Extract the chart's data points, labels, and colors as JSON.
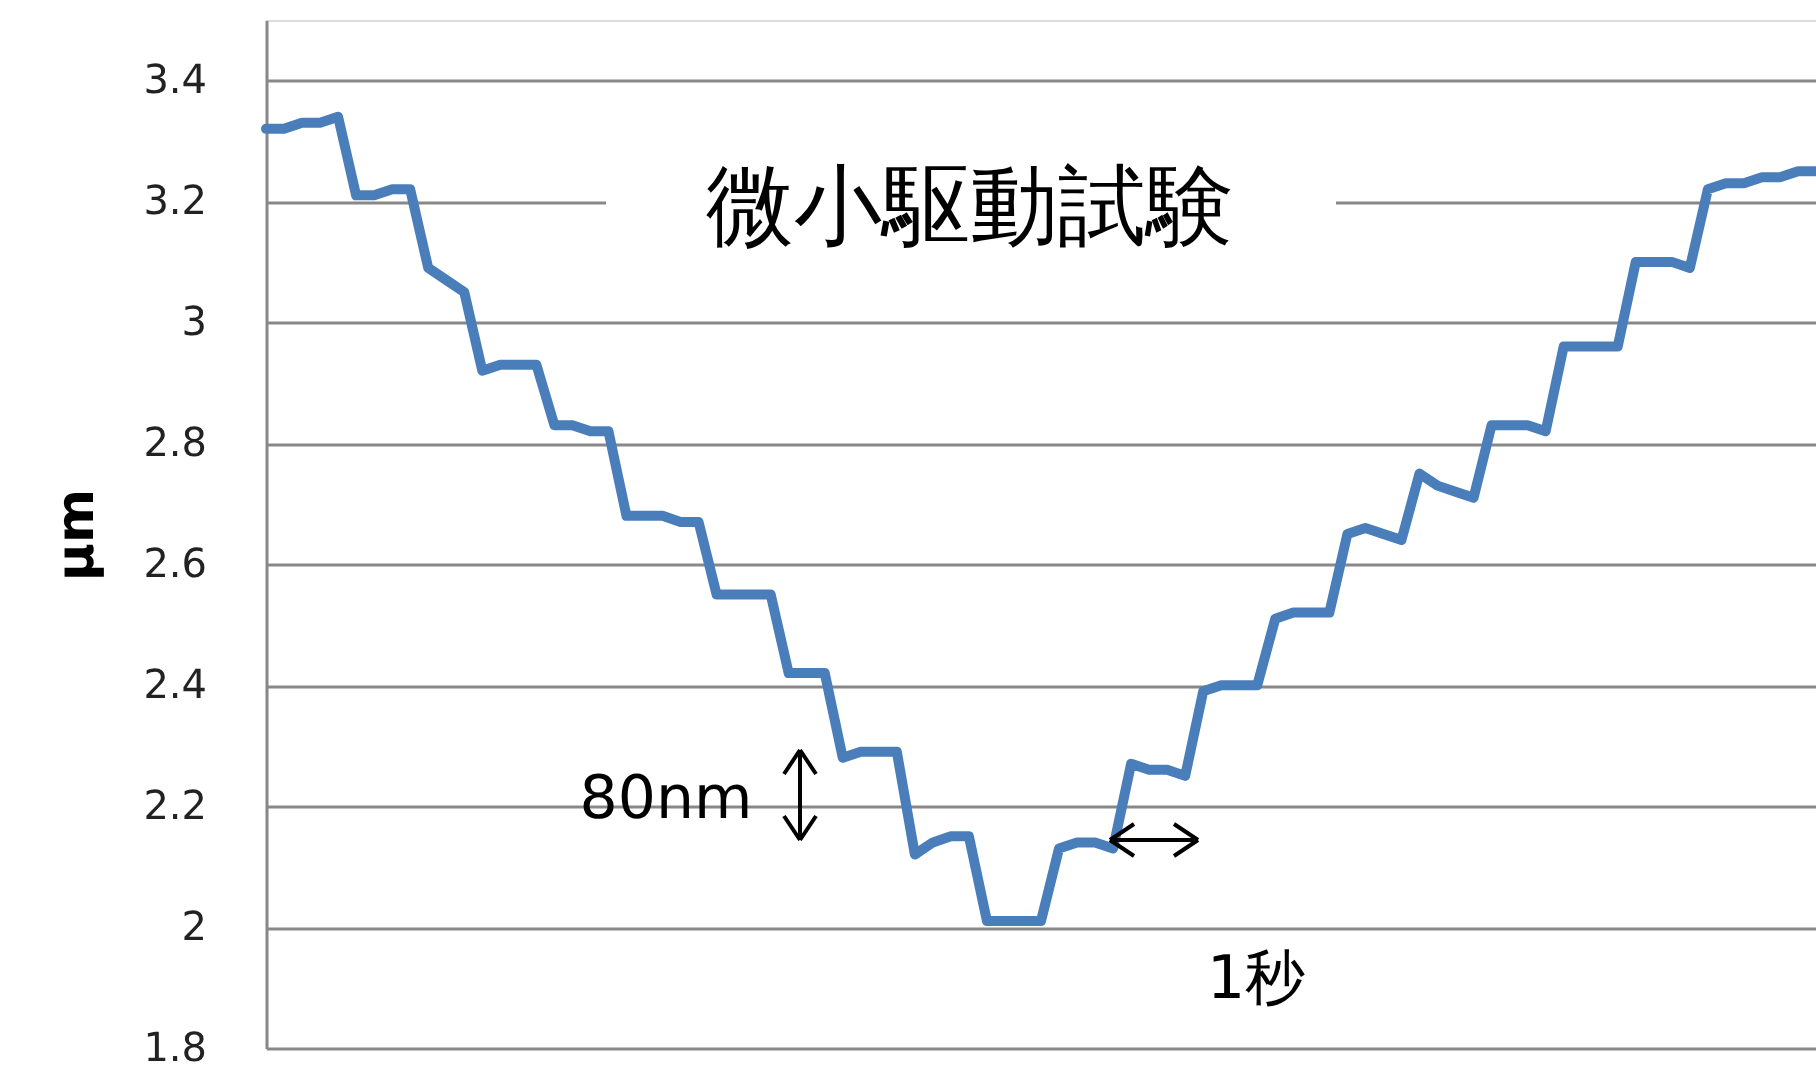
{
  "chart_data": {
    "type": "line",
    "title": "微小駆動試験",
    "ylabel": "μm",
    "annotations": [
      "80nm",
      "1秒"
    ],
    "categories": [
      null,
      null,
      null,
      null,
      null,
      null,
      null,
      null,
      null,
      null,
      null,
      null,
      null,
      null,
      null,
      null,
      null,
      null,
      null,
      null,
      null,
      null,
      null,
      null,
      null,
      null,
      null,
      null,
      null,
      null,
      null,
      null,
      null,
      null,
      null,
      null,
      null,
      null,
      null,
      null,
      null,
      null,
      null,
      null,
      null,
      null,
      null,
      null,
      null,
      null,
      null,
      null,
      null,
      null,
      null,
      null,
      null,
      null,
      null,
      null,
      null,
      null,
      null,
      null,
      null,
      null,
      null,
      null,
      null,
      null,
      null,
      null,
      null,
      null,
      null,
      null,
      null,
      null,
      null,
      null,
      null,
      null,
      null,
      null,
      null,
      null,
      null
    ],
    "series": [
      {
        "color": "#4a7ebb",
        "values": [
          3.32,
          3.32,
          3.33,
          3.33,
          3.34,
          3.21,
          3.21,
          3.22,
          3.22,
          3.09,
          3.07,
          3.05,
          2.92,
          2.93,
          2.93,
          2.93,
          2.83,
          2.83,
          2.82,
          2.82,
          2.68,
          2.68,
          2.68,
          2.67,
          2.67,
          2.55,
          2.55,
          2.55,
          2.55,
          2.42,
          2.42,
          2.42,
          2.28,
          2.29,
          2.29,
          2.29,
          2.12,
          2.14,
          2.15,
          2.15,
          2.01,
          2.01,
          2.01,
          2.01,
          2.13,
          2.14,
          2.14,
          2.13,
          2.27,
          2.26,
          2.26,
          2.25,
          2.39,
          2.4,
          2.4,
          2.4,
          2.51,
          2.52,
          2.52,
          2.52,
          2.65,
          2.66,
          2.65,
          2.64,
          2.75,
          2.73,
          2.72,
          2.71,
          2.83,
          2.83,
          2.83,
          2.82,
          2.96,
          2.96,
          2.96,
          2.96,
          3.1,
          3.1,
          3.1,
          3.09,
          3.22,
          3.23,
          3.23,
          3.24,
          3.24,
          3.25,
          3.25
        ]
      }
    ],
    "ylim": [
      1.8,
      3.5
    ],
    "yticks": [
      1.8,
      2,
      2.2,
      2.4,
      2.6,
      2.8,
      3,
      3.2,
      3.4
    ],
    "grid": "y",
    "tick_labels": "y",
    "marker": "none",
    "line_style": "solid"
  }
}
